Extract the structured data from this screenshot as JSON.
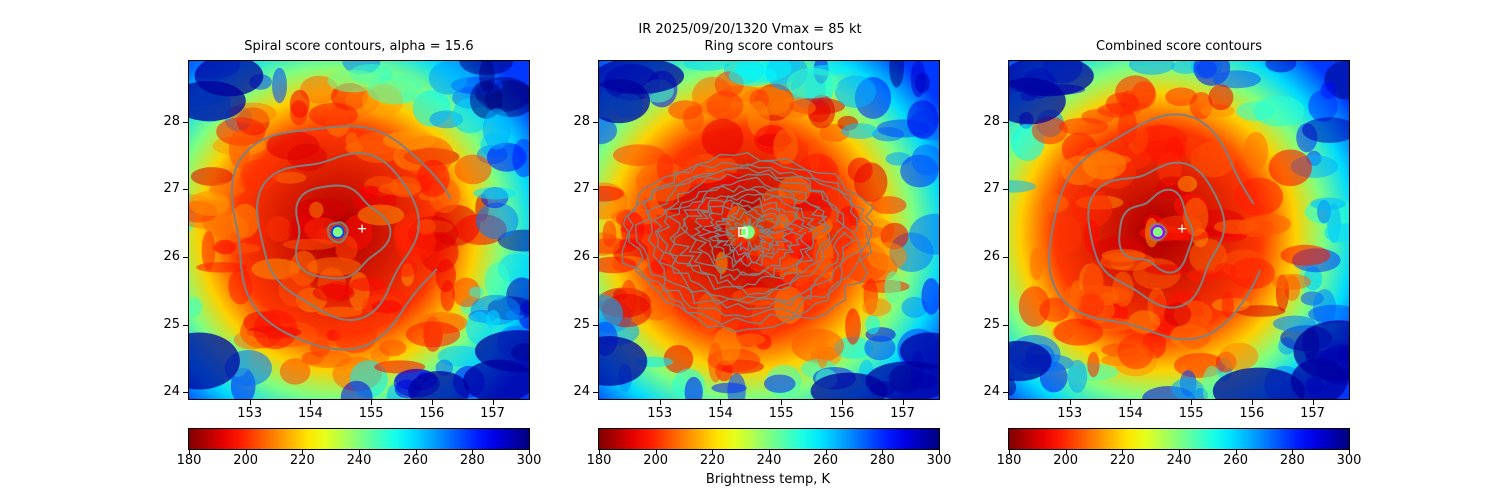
{
  "suptitle": {
    "line1": "IR  2025/09/20/1320    Vmax = 85 kt"
  },
  "colorbar": {
    "ticks": [
      180,
      200,
      220,
      240,
      260,
      280,
      300
    ],
    "label": "Brightness temp, K",
    "colormap": "jet_r"
  },
  "chart_data": [
    {
      "type": "contour",
      "title": "Spiral score contours, alpha = 15.6",
      "xlim": [
        152.0,
        157.6
      ],
      "ylim": [
        23.9,
        28.9
      ],
      "xticks": [
        153,
        154,
        155,
        156,
        157
      ],
      "yticks": [
        24,
        25,
        26,
        27,
        28
      ],
      "storm_center": [
        154.45,
        26.37
      ],
      "reference_marker": {
        "symbol": "+",
        "lon": 154.85,
        "lat": 26.42
      },
      "contour_color": "#808080",
      "contour_radii_deg": [
        0.16,
        0.75,
        1.3,
        1.8
      ],
      "colorbar_range": [
        180,
        300
      ]
    },
    {
      "type": "contour",
      "title": "Ring score contours",
      "xlim": [
        152.0,
        157.6
      ],
      "ylim": [
        23.9,
        28.9
      ],
      "xticks": [
        153,
        154,
        155,
        156,
        157
      ],
      "yticks": [
        24,
        25,
        26,
        27,
        28
      ],
      "storm_center": [
        154.45,
        26.37
      ],
      "reference_marker": {
        "symbol": "square",
        "lon": 154.37,
        "lat": 26.37
      },
      "contour_color": "#808080",
      "contour_note": "dense noisy ring contours around eye",
      "colorbar_range": [
        180,
        300
      ]
    },
    {
      "type": "contour",
      "title": "Combined score contours",
      "xlim": [
        152.0,
        157.6
      ],
      "ylim": [
        23.9,
        28.9
      ],
      "xticks": [
        153,
        154,
        155,
        156,
        157
      ],
      "yticks": [
        24,
        25,
        26,
        27,
        28
      ],
      "storm_center": [
        154.45,
        26.37
      ],
      "reference_marker": {
        "symbol": "+",
        "lon": 154.85,
        "lat": 26.42
      },
      "contour_color": "#808080",
      "contour_radii_deg": [
        0.13,
        0.6,
        1.1,
        1.75
      ],
      "colorbar_range": [
        180,
        300
      ]
    }
  ]
}
